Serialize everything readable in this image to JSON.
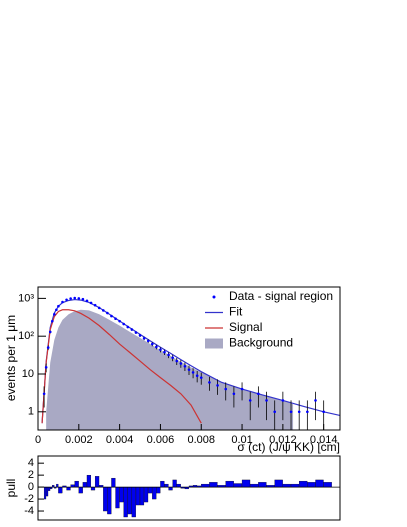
{
  "chart_data": [
    {
      "type": "line",
      "ylabel": "events per 1 μm",
      "xlabel": "σ (ct) (J/ψ KK) [cm]",
      "xlim": [
        0,
        0.0148
      ],
      "ylim": [
        0.33,
        2000
      ],
      "log_y": true,
      "xticks": [
        0,
        0.002,
        0.004,
        0.006,
        0.008,
        0.01,
        0.012,
        0.014
      ],
      "yticks": [
        1,
        10,
        {
          "value": 100,
          "label": "10²"
        },
        {
          "value": 1000,
          "label": "10³"
        }
      ],
      "legend": "upper right",
      "series": [
        {
          "name": "Data - signal region",
          "kind": "points",
          "color": "#0000ff",
          "x": [
            0.0003,
            0.0004,
            0.0005,
            0.0006,
            0.0007,
            0.0008,
            0.0009,
            0.001,
            0.0012,
            0.0014,
            0.0016,
            0.0018,
            0.002,
            0.0022,
            0.0024,
            0.0026,
            0.0028,
            0.003,
            0.0032,
            0.0034,
            0.0036,
            0.0038,
            0.004,
            0.0042,
            0.0044,
            0.0046,
            0.0048,
            0.005,
            0.0052,
            0.0054,
            0.0056,
            0.0058,
            0.006,
            0.0062,
            0.0064,
            0.0066,
            0.0068,
            0.007,
            0.0072,
            0.0074,
            0.0076,
            0.0078,
            0.008,
            0.0084,
            0.0088,
            0.0092,
            0.0096,
            0.01,
            0.0104,
            0.0108,
            0.0112,
            0.0116,
            0.012,
            0.0124,
            0.0128,
            0.0132,
            0.0136,
            0.014
          ],
          "values": [
            3,
            15,
            50,
            130,
            250,
            380,
            500,
            620,
            800,
            920,
            990,
            1020,
            1000,
            950,
            860,
            760,
            660,
            560,
            480,
            410,
            340,
            290,
            250,
            210,
            175,
            150,
            125,
            105,
            88,
            75,
            62,
            52,
            44,
            38,
            32,
            27,
            22,
            19,
            16,
            13,
            11,
            9,
            8,
            6,
            5,
            4,
            3,
            4,
            2,
            3,
            2,
            1,
            2,
            1,
            1,
            1,
            2,
            1
          ],
          "errors": [
            1.7,
            3.9,
            7,
            11,
            16,
            19,
            22,
            25,
            28,
            30,
            31,
            32,
            32,
            31,
            29,
            28,
            26,
            24,
            22,
            20,
            18,
            17,
            16,
            14,
            13,
            12,
            11,
            10,
            9.4,
            8.7,
            7.9,
            7.2,
            6.6,
            6.2,
            5.7,
            5.2,
            4.7,
            4.4,
            4,
            3.6,
            3.3,
            3,
            2.8,
            2.4,
            2.2,
            2,
            1.7,
            2,
            1.4,
            1.7,
            1.4,
            1,
            1.4,
            1,
            1,
            1,
            1.4,
            1
          ]
        },
        {
          "name": "Fit",
          "kind": "line",
          "color": "#3333cc",
          "x": [
            0.0002,
            0.0004,
            0.0006,
            0.0008,
            0.001,
            0.0012,
            0.0015,
            0.0018,
            0.0021,
            0.0025,
            0.003,
            0.0035,
            0.004,
            0.0045,
            0.005,
            0.0055,
            0.006,
            0.0065,
            0.007,
            0.0075,
            0.008,
            0.009,
            0.01,
            0.011,
            0.012,
            0.013,
            0.014,
            0.0148
          ],
          "values": [
            0.5,
            21,
            170,
            410,
            620,
            770,
            880,
            930,
            900,
            780,
            570,
            380,
            252,
            167,
            112,
            75,
            51,
            35,
            24,
            16.5,
            11.5,
            6,
            4,
            2.8,
            2,
            1.4,
            1,
            0.8
          ]
        },
        {
          "name": "Signal",
          "kind": "line",
          "color": "#cc3333",
          "x": [
            0.0002,
            0.0004,
            0.0006,
            0.0008,
            0.001,
            0.0012,
            0.0015,
            0.0018,
            0.0021,
            0.0025,
            0.003,
            0.0035,
            0.004,
            0.0045,
            0.005,
            0.0055,
            0.006,
            0.0065,
            0.007,
            0.0075,
            0.008
          ],
          "values": [
            0.5,
            20,
            150,
            330,
            450,
            500,
            500,
            470,
            400,
            300,
            190,
            110,
            62,
            37,
            22,
            13,
            8,
            5,
            3,
            1.5,
            0.5
          ]
        },
        {
          "name": "Background",
          "kind": "area",
          "color": "#a9a9c4",
          "x": [
            0.0004,
            0.0006,
            0.0008,
            0.001,
            0.0012,
            0.0015,
            0.0018,
            0.0021,
            0.0025,
            0.003,
            0.0035,
            0.004,
            0.0045,
            0.005,
            0.0055,
            0.006,
            0.0065,
            0.007,
            0.0075,
            0.008,
            0.009,
            0.01,
            0.011,
            0.012,
            0.0125
          ],
          "values": [
            1,
            20,
            80,
            170,
            270,
            380,
            460,
            500,
            480,
            380,
            270,
            190,
            130,
            90,
            62,
            43,
            30,
            21,
            15,
            11,
            6,
            4,
            2.8,
            2,
            1.6
          ]
        }
      ]
    },
    {
      "type": "bar",
      "ylabel": "pull",
      "xlim": [
        0,
        0.0148
      ],
      "ylim": [
        -5.5,
        5.2
      ],
      "yticks": [
        -4,
        -2,
        0,
        2,
        4
      ],
      "color": "#0000ee",
      "x": [
        0.0003,
        0.0004,
        0.0005,
        0.0006,
        0.0007,
        0.0008,
        0.0009,
        0.001,
        0.0012,
        0.0014,
        0.0016,
        0.0018,
        0.002,
        0.0022,
        0.0024,
        0.0026,
        0.0028,
        0.003,
        0.0032,
        0.0034,
        0.0036,
        0.0038,
        0.004,
        0.0042,
        0.0044,
        0.0046,
        0.0048,
        0.005,
        0.0052,
        0.0054,
        0.0056,
        0.0058,
        0.006,
        0.0062,
        0.0064,
        0.0066,
        0.0068,
        0.007,
        0.0072,
        0.0074,
        0.0076,
        0.0078,
        0.008,
        0.0084,
        0.0088,
        0.0092,
        0.0096,
        0.01,
        0.0104,
        0.0108,
        0.0112,
        0.0116,
        0.012,
        0.0124,
        0.0128,
        0.0132,
        0.0136,
        0.014
      ],
      "values": [
        -2,
        -1.5,
        -0.6,
        -0.3,
        0.3,
        -0.2,
        0.5,
        -1,
        0.2,
        -0.5,
        0.4,
        1,
        -1,
        0.8,
        2,
        -0.5,
        1.8,
        0.3,
        -4,
        -4.5,
        1.5,
        -3.5,
        -2.5,
        -5,
        -4.5,
        -5,
        -3,
        -3,
        -2.5,
        -1,
        -2,
        -1,
        1,
        0.5,
        -0.5,
        1.2,
        0.5,
        -0.2,
        -0.3,
        0.2,
        0.3,
        0.2,
        0.5,
        0.8,
        0.3,
        1,
        0.6,
        1.2,
        0.5,
        0.8,
        0.3,
        1.2,
        0.5,
        0.5,
        1,
        0.8,
        1.2,
        0.8
      ]
    }
  ]
}
